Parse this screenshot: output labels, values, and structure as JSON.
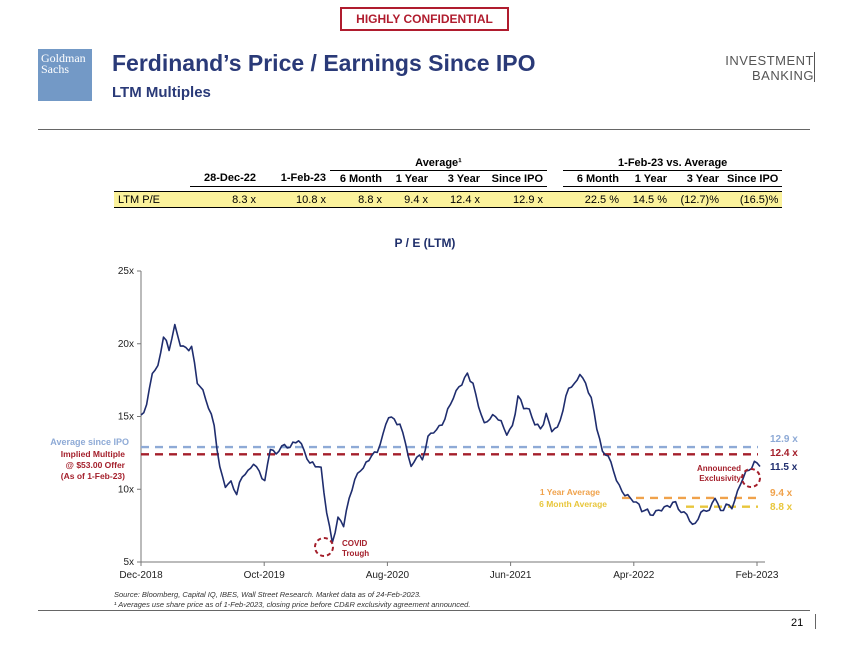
{
  "badge": "HIGHLY CONFIDENTIAL",
  "logo": {
    "line1": "Goldman",
    "line2": "Sachs"
  },
  "header": {
    "title": "Ferdinand’s Price / Earnings Since IPO",
    "subtitle": "LTM Multiples",
    "division_line1": "INVESTMENT",
    "division_line2": "BANKING"
  },
  "table": {
    "group_average": "Average¹",
    "group_vs": "1-Feb-23 vs. Average",
    "columns": [
      "28-Dec-22",
      "1-Feb-23",
      "6 Month",
      "1 Year",
      "3 Year",
      "Since IPO",
      "6 Month",
      "1 Year",
      "3 Year",
      "Since IPO"
    ],
    "row_label": "LTM P/E",
    "values": [
      "8.3 x",
      "10.8 x",
      "8.8 x",
      "9.4 x",
      "12.4 x",
      "12.9 x",
      "22.5 %",
      "14.5 %",
      "(12.7)%",
      "(16.5)%"
    ]
  },
  "chart_title": "P / E (LTM)",
  "chart_data": {
    "type": "line",
    "title": "P / E (LTM)",
    "x_labels": [
      "Dec-2018",
      "Oct-2019",
      "Aug-2020",
      "Jun-2021",
      "Apr-2022",
      "Feb-2023"
    ],
    "y_ticks": [
      "5x",
      "10x",
      "15x",
      "20x",
      "25x"
    ],
    "ylim": [
      5,
      25
    ],
    "series": [
      {
        "values": [
          15.1,
          15.8,
          17.8,
          18.6,
          20.4,
          19.7,
          21.3,
          19.8,
          19.7,
          19.7,
          17.4,
          16.8,
          15.7,
          14.3,
          11.5,
          10.1,
          10.5,
          9.8,
          10.8,
          11.4,
          11.6,
          11.2,
          10.6,
          12.7,
          12.6,
          12.9,
          12.9,
          13.1,
          13.3,
          12.7,
          11.8,
          11.7,
          11.4,
          8.4,
          6.2,
          8.1,
          7.5,
          9.4,
          10.8,
          11.1,
          11.9,
          12.2,
          12.6,
          13.9,
          14.9,
          14.9,
          14.3,
          13.2,
          11.5,
          12.3,
          12.1,
          13.6,
          13.9,
          14.2,
          14.9,
          15.8,
          16.9,
          17.2,
          17.9,
          17.3,
          15.5,
          14.7,
          14.8,
          15.1,
          14.7,
          13.6,
          14.4,
          16.3,
          15.7,
          15.5,
          14.5,
          14.1,
          15.1,
          14.0,
          14.2,
          15.6,
          16.9,
          17.3,
          17.8,
          17.2,
          16.4,
          14.1,
          12.8,
          12.2,
          11.2,
          10.2,
          9.5,
          9.5,
          9.1,
          8.6,
          8.5,
          8.2,
          8.5,
          8.8,
          8.9,
          9.1,
          8.5,
          8.1,
          7.6,
          7.9,
          8.6,
          8.7,
          9.3,
          8.6,
          8.8,
          8.7,
          9.9,
          10.8,
          11.4,
          11.8,
          11.6
        ]
      }
    ],
    "reference_lines": [
      {
        "label": "12.9 x",
        "value": 12.9,
        "color": "#8eaad6"
      },
      {
        "label": "12.4 x",
        "value": 12.4,
        "color": "#a41f2b"
      },
      {
        "label": "9.4 x",
        "value": 9.4,
        "color": "#f0a24b"
      },
      {
        "label": "8.8 x",
        "value": 8.8,
        "color": "#e8c63b"
      }
    ],
    "end_value_label": "11.5 x",
    "annotations": {
      "avg_since_ipo": "Average since IPO",
      "implied_1": "Implied Multiple",
      "implied_2": "@ $53.00 Offer",
      "implied_3": "(As of 1-Feb-23)",
      "one_year": "1 Year Average",
      "six_month": "6 Month Average",
      "announced_1": "Announced",
      "announced_2": "Exclusivity",
      "covid_1": "COVID",
      "covid_2": "Trough"
    },
    "colors": {
      "line": "#1f2d6e",
      "navy_text": "#2a3a78",
      "red": "#a41f2b",
      "light_blue": "#8eaad6",
      "orange": "#f0a24b",
      "yellow": "#e8c63b"
    }
  },
  "footnotes": {
    "source": "Source: Bloomberg, Capital IQ, IBES, Wall Street Research. Market data as of 24-Feb-2023.",
    "note": "¹ Averages use share price as of 1-Feb-2023, closing price before CD&R exclusivity agreement announced."
  },
  "page_number": "21"
}
